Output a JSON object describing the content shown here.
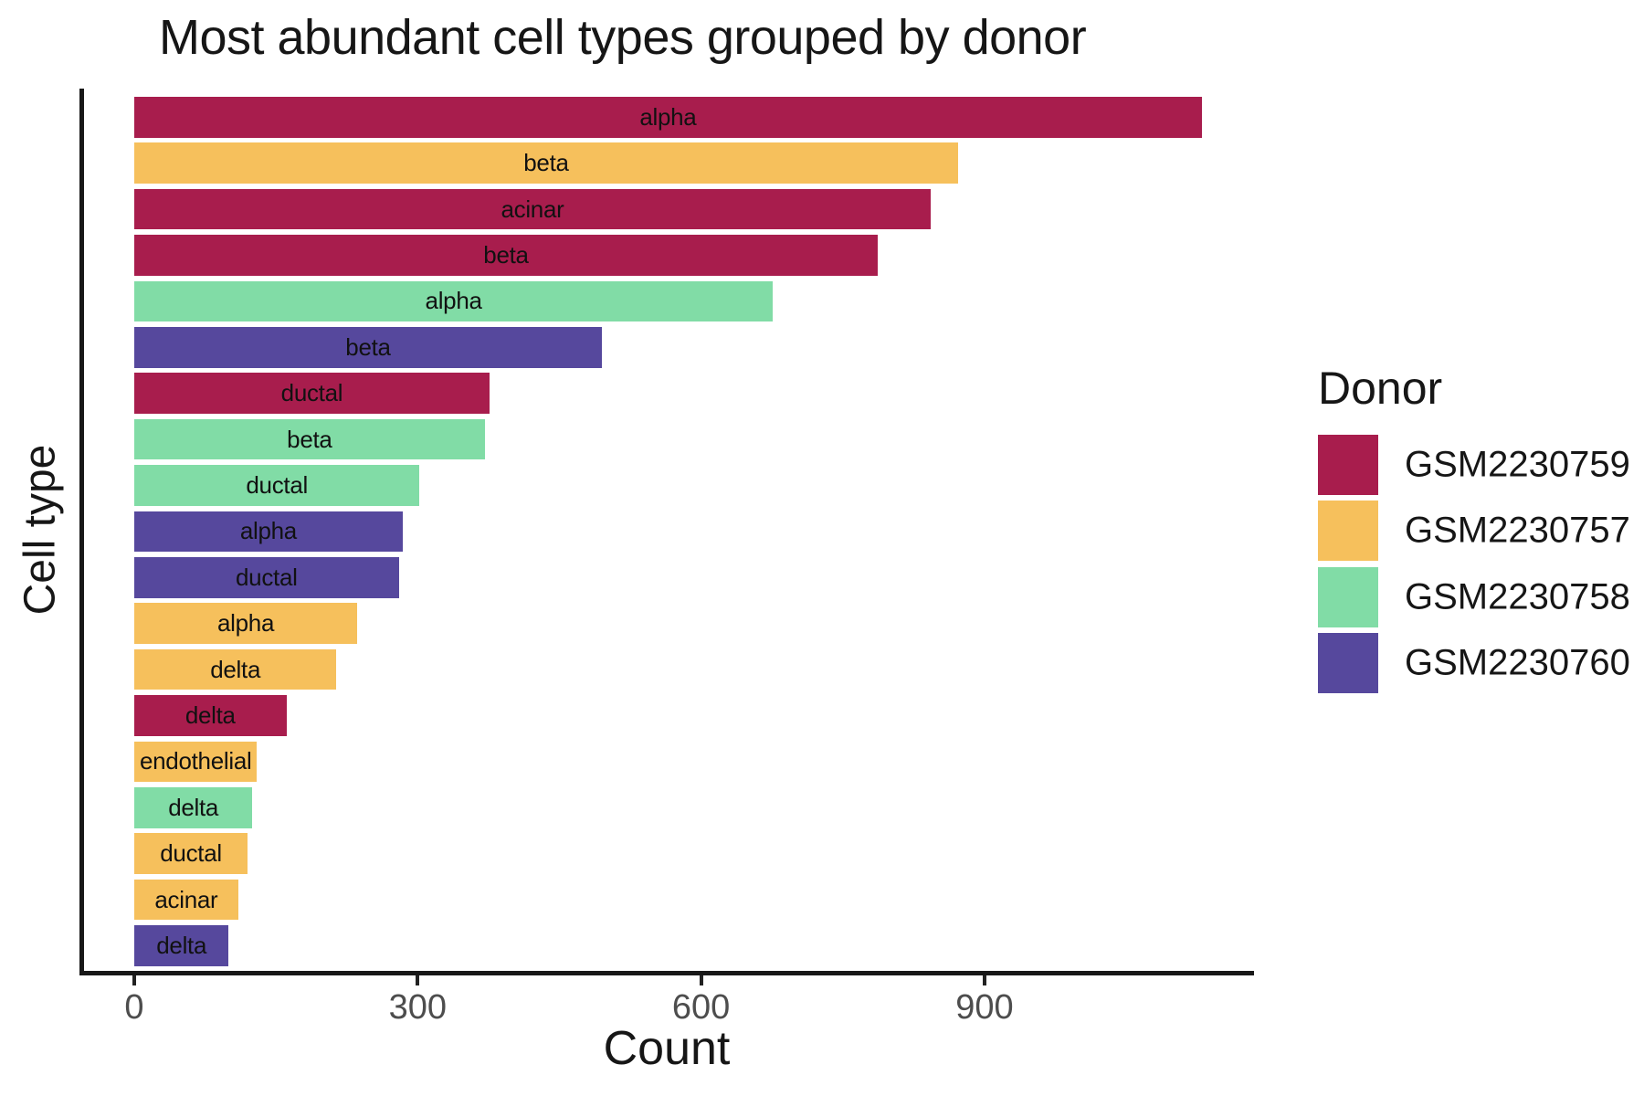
{
  "title": "Most abundant cell types grouped by donor",
  "axes": {
    "x": {
      "label": "Count",
      "ticks": [
        "0",
        "300",
        "600",
        "900"
      ]
    },
    "y": {
      "label": "Cell type"
    }
  },
  "legend": {
    "title": "Donor",
    "items": [
      {
        "label": "GSM2230759",
        "color": "#A81D4D"
      },
      {
        "label": "GSM2230757",
        "color": "#F6C05C"
      },
      {
        "label": "GSM2230758",
        "color": "#81DCA6"
      },
      {
        "label": "GSM2230760",
        "color": "#56489D"
      }
    ]
  },
  "chart_data": {
    "type": "bar",
    "orientation": "horizontal",
    "title": "Most abundant cell types grouped by donor",
    "xlabel": "Count",
    "ylabel": "Cell type",
    "xlim": [
      0,
      1186
    ],
    "x_ticks": [
      0,
      300,
      600,
      900
    ],
    "grid": false,
    "legend_position": "right",
    "legend_title": "Donor",
    "bar_labels_inside": true,
    "bars": [
      {
        "cell_type": "alpha",
        "donor": "GSM2230759",
        "count": 1130
      },
      {
        "cell_type": "beta",
        "donor": "GSM2230757",
        "count": 872
      },
      {
        "cell_type": "acinar",
        "donor": "GSM2230759",
        "count": 843
      },
      {
        "cell_type": "beta",
        "donor": "GSM2230759",
        "count": 787
      },
      {
        "cell_type": "alpha",
        "donor": "GSM2230758",
        "count": 676
      },
      {
        "cell_type": "beta",
        "donor": "GSM2230760",
        "count": 495
      },
      {
        "cell_type": "ductal",
        "donor": "GSM2230759",
        "count": 376
      },
      {
        "cell_type": "beta",
        "donor": "GSM2230758",
        "count": 371
      },
      {
        "cell_type": "ductal",
        "donor": "GSM2230758",
        "count": 302
      },
      {
        "cell_type": "alpha",
        "donor": "GSM2230760",
        "count": 284
      },
      {
        "cell_type": "ductal",
        "donor": "GSM2230760",
        "count": 280
      },
      {
        "cell_type": "alpha",
        "donor": "GSM2230757",
        "count": 236
      },
      {
        "cell_type": "delta",
        "donor": "GSM2230757",
        "count": 214
      },
      {
        "cell_type": "delta",
        "donor": "GSM2230759",
        "count": 161
      },
      {
        "cell_type": "endothelial",
        "donor": "GSM2230757",
        "count": 130
      },
      {
        "cell_type": "delta",
        "donor": "GSM2230758",
        "count": 125
      },
      {
        "cell_type": "ductal",
        "donor": "GSM2230757",
        "count": 120
      },
      {
        "cell_type": "acinar",
        "donor": "GSM2230757",
        "count": 110
      },
      {
        "cell_type": "delta",
        "donor": "GSM2230760",
        "count": 100
      }
    ]
  }
}
